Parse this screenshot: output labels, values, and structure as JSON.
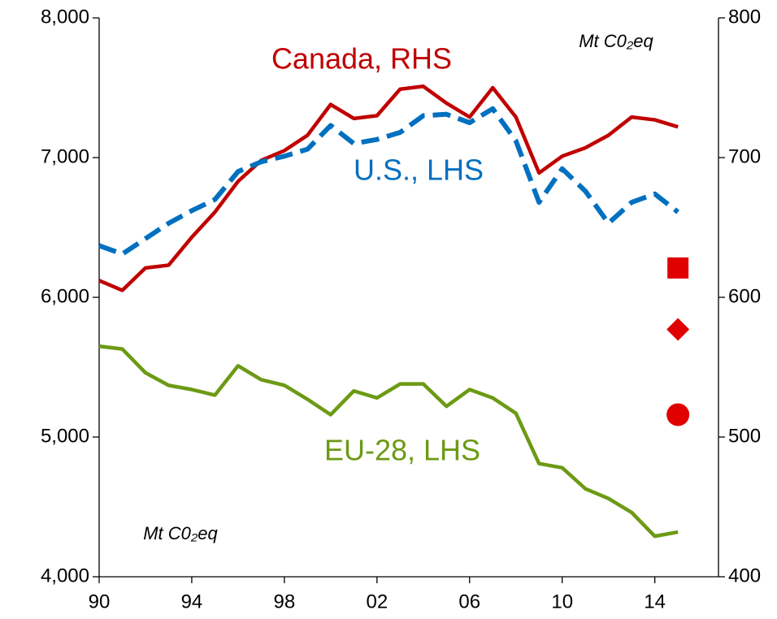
{
  "chart_data": {
    "type": "line",
    "x": [
      1990,
      1991,
      1992,
      1993,
      1994,
      1995,
      1996,
      1997,
      1998,
      1999,
      2000,
      2001,
      2002,
      2003,
      2004,
      2005,
      2006,
      2007,
      2008,
      2009,
      2010,
      2011,
      2012,
      2013,
      2014,
      2015
    ],
    "series": [
      {
        "name": "Canada, RHS",
        "color": "#c00000",
        "axis": "y2",
        "dash": false,
        "values": [
          612,
          605,
          621,
          623,
          643,
          661,
          683,
          698,
          705,
          716,
          738,
          728,
          730,
          749,
          751,
          739,
          729,
          750,
          729,
          689,
          701,
          707,
          716,
          729,
          727,
          722
        ]
      },
      {
        "name": "U.S., LHS",
        "color": "#0070c0",
        "dash": true,
        "values": [
          6370,
          6310,
          6420,
          6530,
          6620,
          6700,
          6900,
          6970,
          7010,
          7060,
          7230,
          7100,
          7130,
          7180,
          7300,
          7310,
          7250,
          7350,
          7120,
          6680,
          6920,
          6760,
          6530,
          6680,
          6740,
          6610
        ]
      },
      {
        "name": "EU-28, LHS",
        "color": "#6c9a14",
        "dash": false,
        "values": [
          5650,
          5630,
          5460,
          5370,
          5340,
          5300,
          5510,
          5410,
          5370,
          5270,
          5160,
          5330,
          5280,
          5380,
          5380,
          5220,
          5340,
          5280,
          5170,
          4810,
          4780,
          4630,
          4560,
          4460,
          4290,
          4320
        ]
      }
    ],
    "points": [
      {
        "x": 2015,
        "value": 621,
        "shape": "square",
        "color": "#e00000",
        "axis": "y2"
      },
      {
        "x": 2015,
        "value": 577,
        "shape": "diamond",
        "color": "#e00000",
        "axis": "y2"
      },
      {
        "x": 2015,
        "value": 516,
        "shape": "circle",
        "color": "#e00000",
        "axis": "y2"
      }
    ],
    "annotations": [
      "Mt C0₂eq",
      "Mt C0₂eq"
    ],
    "xlim": [
      1990,
      2016.75
    ],
    "xticks": [
      {
        "value": 1990,
        "label": "90"
      },
      {
        "value": 1994,
        "label": "94"
      },
      {
        "value": 1998,
        "label": "98"
      },
      {
        "value": 2002,
        "label": "02"
      },
      {
        "value": 2006,
        "label": "06"
      },
      {
        "value": 2010,
        "label": "10"
      },
      {
        "value": 2014,
        "label": "14"
      }
    ],
    "ylim": [
      4000,
      8000
    ],
    "yticks": [
      {
        "value": 4000,
        "label": "4,000"
      },
      {
        "value": 5000,
        "label": "5,000"
      },
      {
        "value": 6000,
        "label": "6,000"
      },
      {
        "value": 7000,
        "label": "7,000"
      },
      {
        "value": 8000,
        "label": "8,000"
      }
    ],
    "y2lim": [
      400,
      800
    ],
    "y2ticks": [
      400,
      500,
      600,
      700,
      800
    ],
    "grid": false
  }
}
